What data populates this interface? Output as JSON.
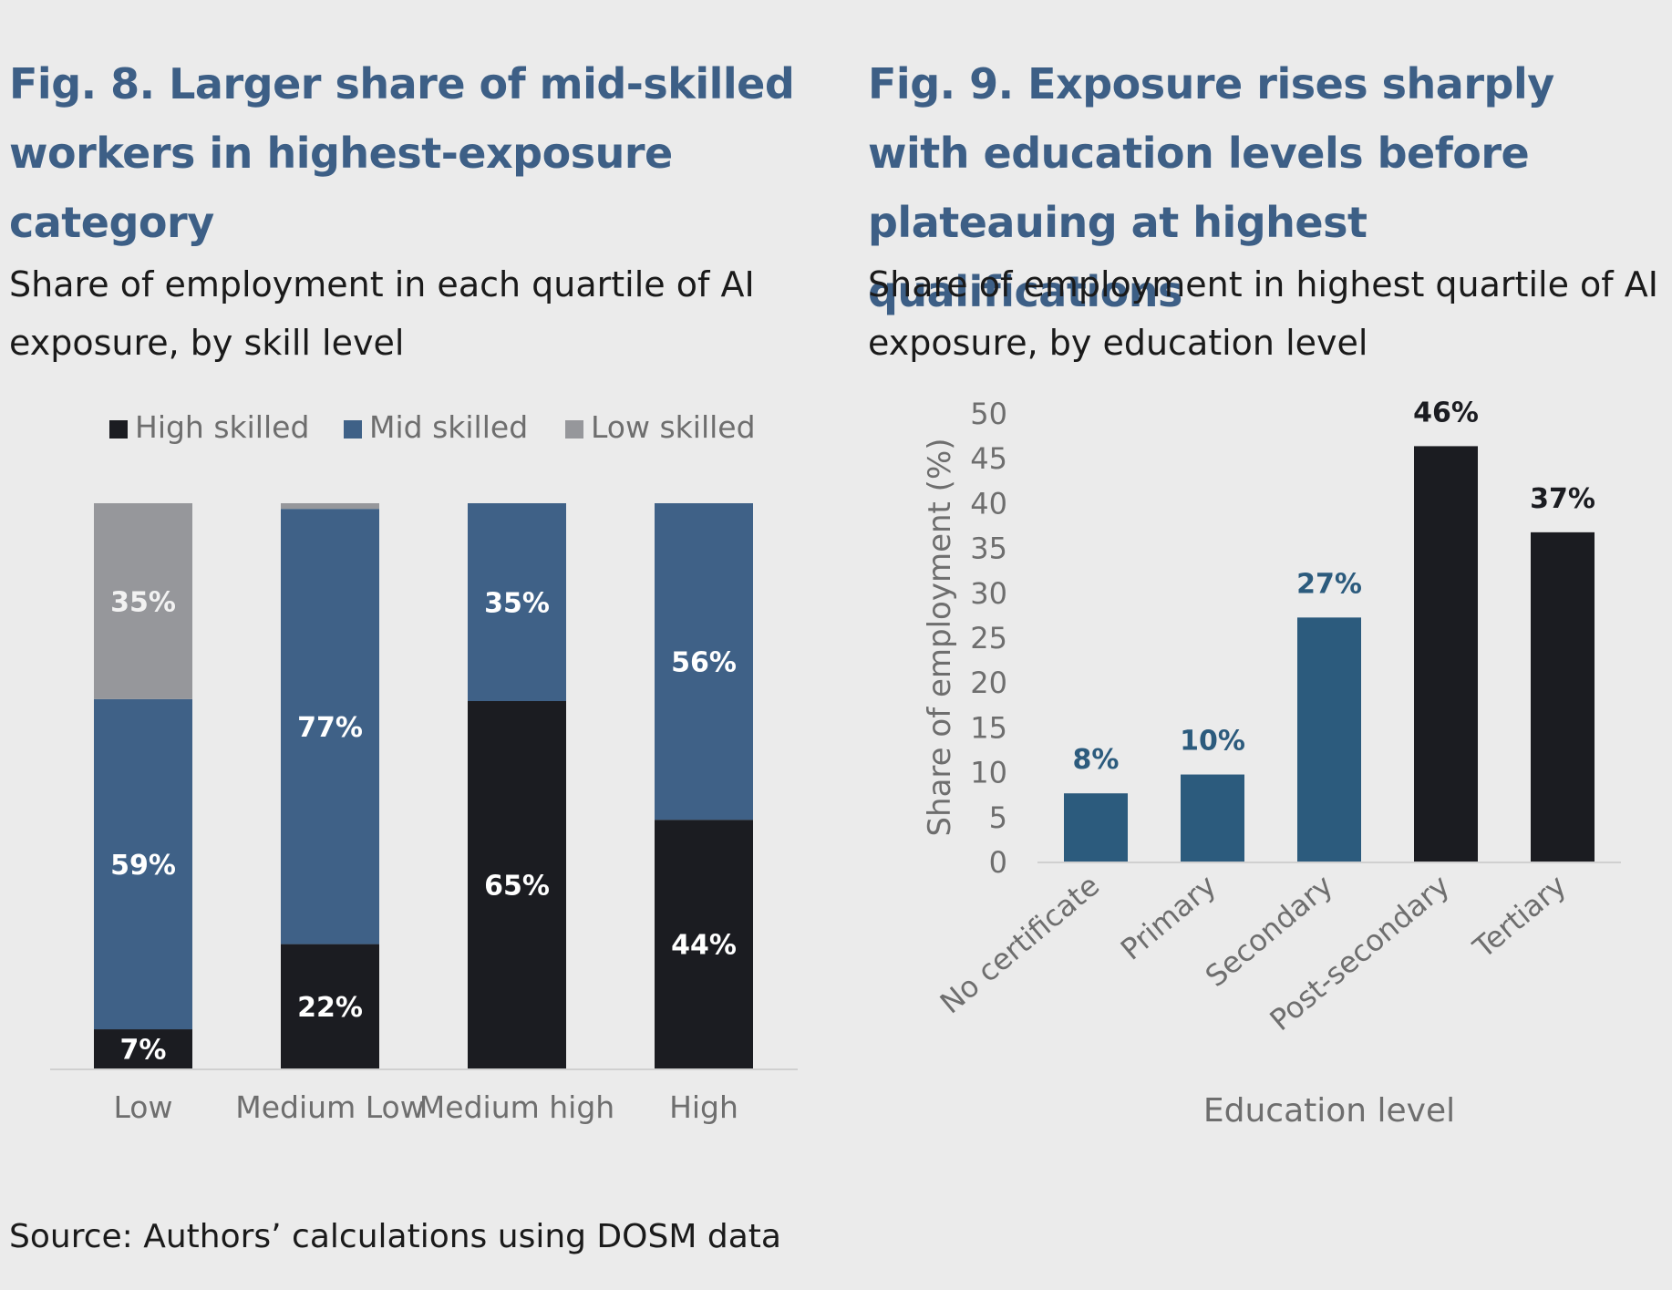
{
  "fig8": {
    "title": "Fig. 8. Larger share of mid-skilled workers in highest-exposure category",
    "subtitle": "Share of employment in each quartile of AI exposure, by skill level"
  },
  "fig9": {
    "title": "Fig. 9. Exposure rises sharply with education levels before plateauing at highest qualifications",
    "subtitle": "Share of employment in highest quartile of AI exposure, by education level"
  },
  "source": "Source: Authors’ calculations using DOSM data",
  "colors": {
    "high_skilled": "#1b1c21",
    "mid_skilled": "#3f6187",
    "low_skilled": "#96979b",
    "fig9_blue": "#2c5b7d",
    "fig9_black": "#1b1c21",
    "axis_text": "#6e6e6e",
    "title_blue": "#3d5f86"
  },
  "chart_data": [
    {
      "type": "bar",
      "stacked": true,
      "categories": [
        "Low",
        "Medium Low",
        "Medium high",
        "High"
      ],
      "series": [
        {
          "name": "High skilled",
          "values": [
            7,
            22,
            65,
            44
          ],
          "labels": [
            "7%",
            "22%",
            "65%",
            "44%"
          ]
        },
        {
          "name": "Mid skilled",
          "values": [
            59,
            77,
            35,
            56
          ],
          "labels": [
            "59%",
            "77%",
            "35%",
            "56%"
          ]
        },
        {
          "name": "Low skilled",
          "values": [
            35,
            1,
            0,
            0
          ],
          "labels": [
            "35%",
            "",
            "",
            ""
          ]
        }
      ],
      "ylim": [
        0,
        100
      ],
      "legend": "top",
      "grid": false
    },
    {
      "type": "bar",
      "categories": [
        "No certificate",
        "Primary",
        "Secondary",
        "Post-secondary",
        "Tertiary"
      ],
      "values": [
        7.6,
        9.7,
        27.2,
        46.3,
        36.7
      ],
      "labels": [
        "8%",
        "10%",
        "27%",
        "46%",
        "37%"
      ],
      "ylabel": "Share of employment (%)",
      "xlabel": "Education level",
      "ylim": [
        0,
        50
      ],
      "yticks": [
        0,
        5,
        10,
        15,
        20,
        25,
        30,
        35,
        40,
        45,
        50
      ],
      "grid": false
    }
  ]
}
